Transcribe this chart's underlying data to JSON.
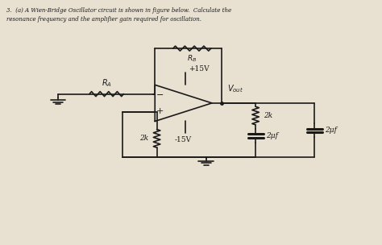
{
  "bg_color": "#e8e0d0",
  "line_color": "#1a1a1a",
  "title_line1": "3.  (a) A Wien-Bridge Oscillator circuit is shown in figure below.  Calculate the",
  "title_line2": "resonance frequency and the amplifier gain required for oscillation.",
  "label_RA": "RA",
  "label_RB": "RB",
  "label_plus15": "+15V",
  "label_minus15": "-15V",
  "label_vout": "Vout",
  "label_2k_top": "2k",
  "label_2pf_top": "2μf",
  "label_2k_bot": "2k",
  "label_2pf_bot": "2μf",
  "figsize": [
    4.74,
    3.04
  ],
  "dpi": 100
}
